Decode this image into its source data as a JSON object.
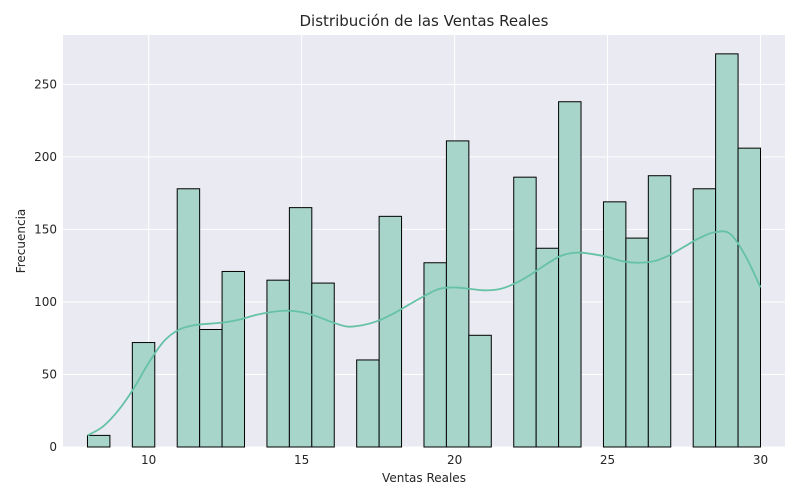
{
  "chart_data": {
    "type": "bar",
    "title": "Distribución de las Ventas Reales",
    "xlabel": "Ventas Reales",
    "ylabel": "Frecuencia",
    "xlim": [
      7.2,
      30.8
    ],
    "ylim": [
      0,
      284
    ],
    "x_ticks": [
      10,
      15,
      20,
      25,
      30
    ],
    "y_ticks": [
      0,
      50,
      100,
      150,
      200,
      250
    ],
    "grid": true,
    "bin_start": 8,
    "bin_width": 0.7333,
    "counts": [
      8,
      0,
      72,
      0,
      178,
      81,
      121,
      0,
      115,
      165,
      113,
      0,
      60,
      159,
      0,
      127,
      211,
      77,
      0,
      186,
      137,
      238,
      0,
      169,
      144,
      187,
      0,
      178,
      271,
      206
    ],
    "kde": {
      "x": [
        8,
        8.5,
        9,
        9.5,
        10,
        10.5,
        11,
        11.5,
        12,
        12.5,
        13,
        13.5,
        14,
        14.5,
        15,
        15.5,
        16,
        16.5,
        17,
        17.5,
        18,
        18.5,
        19,
        19.5,
        20,
        20.5,
        21,
        21.5,
        22,
        22.5,
        23,
        23.5,
        24,
        24.5,
        25,
        25.5,
        26,
        26.5,
        27,
        27.5,
        28,
        28.5,
        29,
        29.5,
        30
      ],
      "y": [
        8,
        14,
        25,
        40,
        58,
        73,
        81,
        84,
        85,
        86,
        88,
        91,
        93,
        94,
        93,
        90,
        86,
        83,
        84,
        87,
        92,
        98,
        104,
        109,
        110,
        109,
        108,
        109,
        113,
        119,
        126,
        132,
        134,
        133,
        131,
        128,
        127,
        128,
        132,
        138,
        144,
        148,
        147,
        132,
        110
      ]
    },
    "colors": {
      "bar_fill": "#a8d5c9",
      "bar_edge": "#000000",
      "kde_line": "#66c2a5",
      "plot_bg": "#eaeaf2",
      "grid": "#ffffff"
    }
  }
}
